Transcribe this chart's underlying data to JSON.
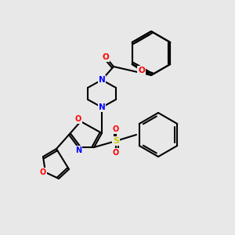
{
  "bg_color": "#e8e8e8",
  "bond_color": "#000000",
  "bond_width": 1.5,
  "atom_colors": {
    "N": "#0000ff",
    "O": "#ff0000",
    "S": "#cccc00",
    "C": "#000000"
  },
  "font_size": 7.5
}
